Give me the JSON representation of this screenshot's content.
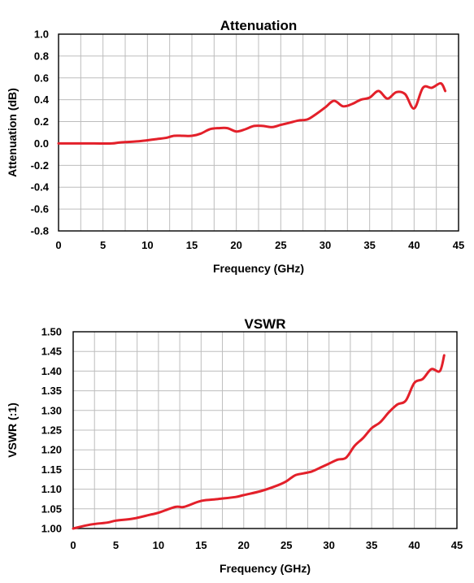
{
  "chart_data": [
    {
      "type": "line",
      "title": "Attenuation",
      "xlabel": "Frequency (GHz)",
      "ylabel": "Attenuation (dB)",
      "xlim": [
        0,
        45
      ],
      "ylim": [
        -0.8,
        1.0
      ],
      "xticks": [
        "0",
        "5",
        "10",
        "15",
        "20",
        "25",
        "30",
        "35",
        "40",
        "45"
      ],
      "yticks": [
        "1.0",
        "0.8",
        "0.6",
        "0.4",
        "0.2",
        "0.0",
        "-0.2",
        "-0.4",
        "-0.6",
        "-0.8"
      ],
      "ytick_values": [
        1.0,
        0.8,
        0.6,
        0.4,
        0.2,
        0.0,
        -0.2,
        -0.4,
        -0.6,
        -0.8
      ],
      "grid": true,
      "color": "#e3202a",
      "series": [
        {
          "x": [
            0,
            2,
            4,
            6,
            7,
            9,
            11,
            12,
            13,
            14,
            15,
            16,
            17,
            18,
            19,
            20,
            21,
            22,
            23,
            24,
            25,
            26,
            27,
            28,
            29,
            30,
            31,
            32,
            33,
            34,
            35,
            36,
            37,
            38,
            39,
            40,
            41,
            42,
            43,
            43.5
          ],
          "y": [
            0.0,
            0.0,
            0.0,
            0.0,
            0.01,
            0.02,
            0.04,
            0.05,
            0.07,
            0.07,
            0.07,
            0.09,
            0.13,
            0.14,
            0.14,
            0.11,
            0.13,
            0.16,
            0.16,
            0.15,
            0.17,
            0.19,
            0.21,
            0.22,
            0.27,
            0.33,
            0.39,
            0.34,
            0.36,
            0.4,
            0.42,
            0.48,
            0.41,
            0.47,
            0.45,
            0.32,
            0.51,
            0.51,
            0.55,
            0.48
          ]
        }
      ]
    },
    {
      "type": "line",
      "title": "VSWR",
      "xlabel": "Frequency (GHz)",
      "ylabel": "VSWR (:1)",
      "xlim": [
        0,
        45
      ],
      "ylim": [
        1.0,
        1.5
      ],
      "xticks": [
        "0",
        "5",
        "10",
        "15",
        "20",
        "25",
        "30",
        "35",
        "40",
        "45"
      ],
      "yticks": [
        "1.50",
        "1.45",
        "1.40",
        "1.35",
        "1.30",
        "1.25",
        "1.20",
        "1.15",
        "1.10",
        "1.05",
        "1.00"
      ],
      "ytick_values": [
        1.5,
        1.45,
        1.4,
        1.35,
        1.3,
        1.25,
        1.2,
        1.15,
        1.1,
        1.05,
        1.0
      ],
      "grid": true,
      "color": "#e3202a",
      "series": [
        {
          "x": [
            0,
            2,
            4,
            5,
            7,
            9,
            10,
            12,
            13,
            15,
            17,
            19,
            20,
            22,
            24,
            25,
            26,
            27,
            28,
            29,
            30,
            31,
            32,
            33,
            34,
            35,
            36,
            37,
            38,
            39,
            40,
            41,
            42,
            43,
            43.5
          ],
          "y": [
            1.0,
            1.01,
            1.015,
            1.02,
            1.025,
            1.035,
            1.04,
            1.055,
            1.055,
            1.07,
            1.075,
            1.08,
            1.085,
            1.095,
            1.11,
            1.12,
            1.135,
            1.14,
            1.145,
            1.155,
            1.165,
            1.175,
            1.18,
            1.21,
            1.23,
            1.255,
            1.27,
            1.295,
            1.315,
            1.325,
            1.37,
            1.38,
            1.405,
            1.4,
            1.44
          ]
        }
      ]
    }
  ]
}
